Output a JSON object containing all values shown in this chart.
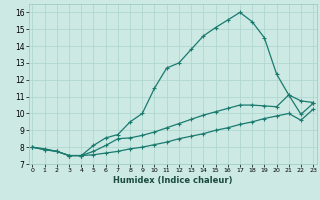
{
  "xlabel": "Humidex (Indice chaleur)",
  "bg_color": "#cce9e4",
  "grid_color": "#b0d8d0",
  "line_color": "#1a7a6e",
  "xlim": [
    0,
    23
  ],
  "ylim": [
    7,
    16.5
  ],
  "xticks": [
    0,
    1,
    2,
    3,
    4,
    5,
    6,
    7,
    8,
    9,
    10,
    11,
    12,
    13,
    14,
    15,
    16,
    17,
    18,
    19,
    20,
    21,
    22,
    23
  ],
  "yticks": [
    7,
    8,
    9,
    10,
    11,
    12,
    13,
    14,
    15,
    16
  ],
  "line1_y": [
    8.0,
    7.9,
    7.75,
    7.5,
    7.5,
    8.1,
    8.55,
    8.75,
    9.5,
    10.0,
    11.5,
    12.7,
    13.0,
    13.8,
    14.6,
    15.1,
    15.55,
    16.0,
    15.45,
    14.5,
    12.35,
    11.1,
    10.75,
    10.65
  ],
  "line2_y": [
    8.0,
    7.85,
    7.75,
    7.5,
    7.5,
    7.75,
    8.1,
    8.5,
    8.55,
    8.7,
    8.9,
    9.15,
    9.4,
    9.65,
    9.9,
    10.1,
    10.3,
    10.5,
    10.5,
    10.45,
    10.4,
    11.1,
    9.95,
    10.6
  ],
  "line3_y": [
    8.0,
    7.85,
    7.75,
    7.5,
    7.5,
    7.55,
    7.65,
    7.75,
    7.9,
    8.0,
    8.15,
    8.3,
    8.5,
    8.65,
    8.8,
    9.0,
    9.15,
    9.35,
    9.5,
    9.7,
    9.85,
    10.0,
    9.6,
    10.25
  ]
}
